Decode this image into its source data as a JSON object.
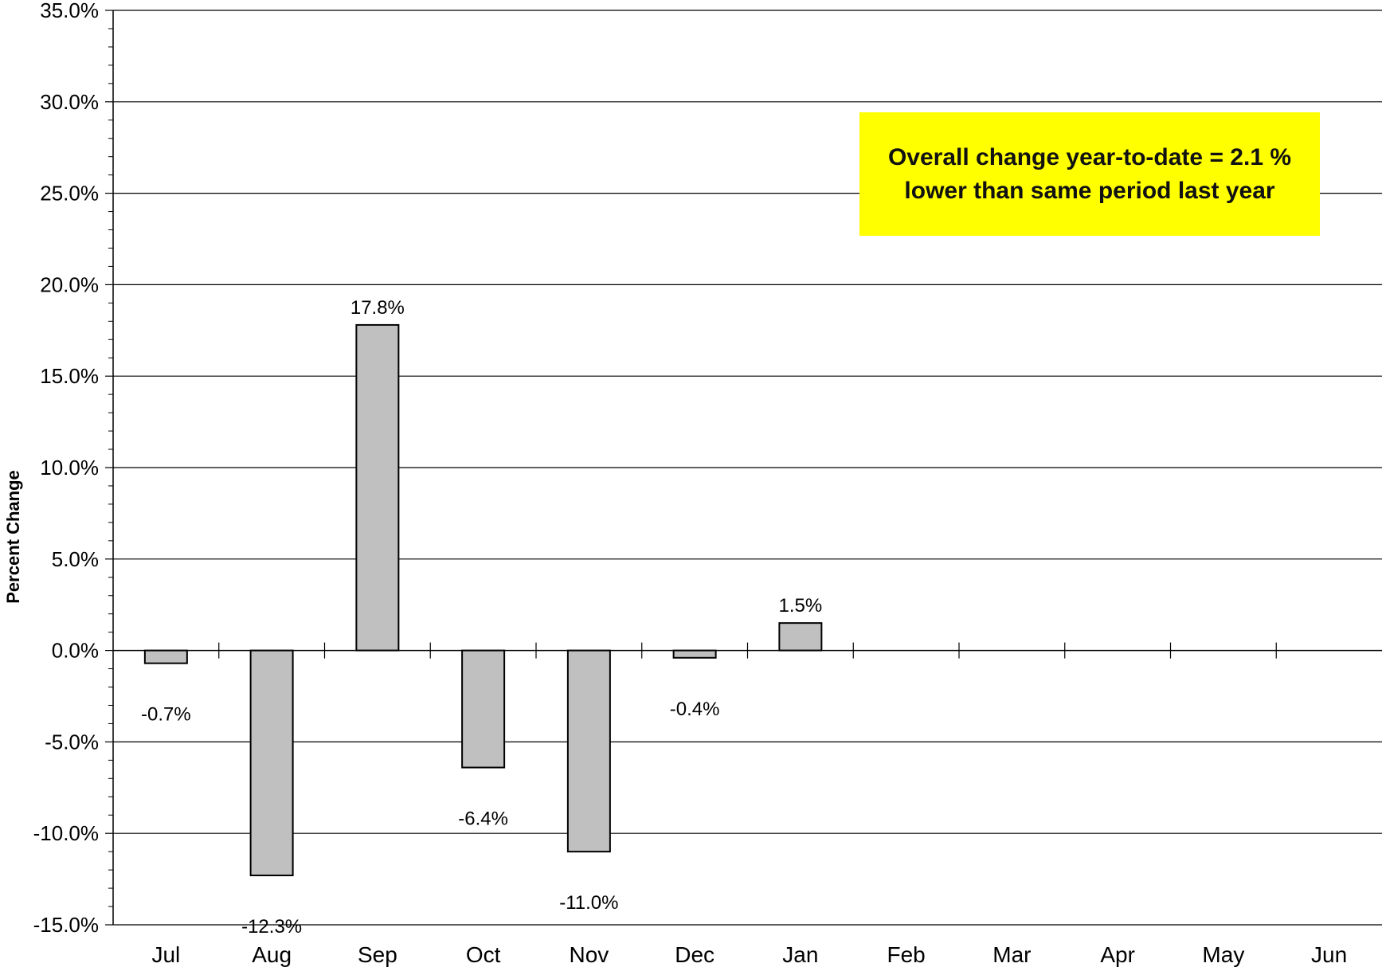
{
  "chart_data": {
    "type": "bar",
    "categories": [
      "Jul",
      "Aug",
      "Sep",
      "Oct",
      "Nov",
      "Dec",
      "Jan",
      "Feb",
      "Mar",
      "Apr",
      "May",
      "Jun"
    ],
    "values": [
      -0.7,
      -12.3,
      17.8,
      -6.4,
      -11.0,
      -0.4,
      1.5,
      null,
      null,
      null,
      null,
      null
    ],
    "data_labels": [
      "-0.7%",
      "-12.3%",
      "17.8%",
      "-6.4%",
      "-11.0%",
      "-0.4%",
      "1.5%",
      "",
      "",
      "",
      "",
      ""
    ],
    "ylabel": "Percent Change",
    "ylim": [
      -15,
      35
    ],
    "yticks": [
      -15,
      -10,
      -5,
      0,
      5,
      10,
      15,
      20,
      25,
      30,
      35
    ],
    "ytick_labels": [
      "-15.0%",
      "-10.0%",
      "-5.0%",
      "0.0%",
      "5.0%",
      "10.0%",
      "15.0%",
      "20.0%",
      "25.0%",
      "30.0%",
      "35.0%"
    ],
    "grid": true,
    "bar_color": "#c0c0c0",
    "annotation": {
      "line1": "Overall change year-to-date = 2.1 %",
      "line2": "lower than same period last year",
      "background": "#ffff00"
    }
  }
}
